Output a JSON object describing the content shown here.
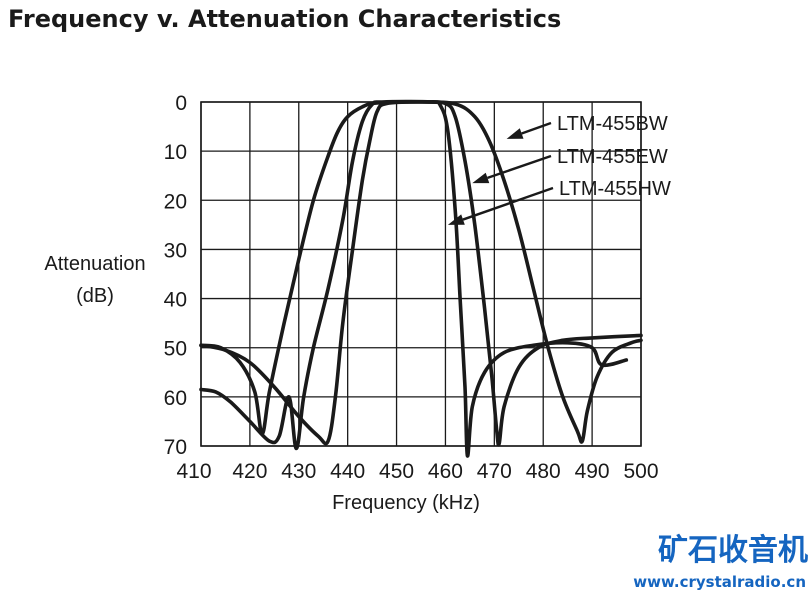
{
  "chart_data": {
    "type": "line",
    "title": "Frequency v. Attenuation Characteristics",
    "xlabel": "Frequency (kHz)",
    "ylabel_line1": "Attenuation",
    "ylabel_line2": "(dB)",
    "xlim": [
      410,
      500
    ],
    "ylim": [
      0,
      70
    ],
    "y_inverted": true,
    "grid": true,
    "x_ticks": [
      410,
      420,
      430,
      440,
      450,
      460,
      470,
      480,
      490,
      500
    ],
    "x_tick_labels": [
      "410",
      "420",
      "430",
      "440",
      "450",
      "460",
      "470",
      "480",
      "490",
      "500"
    ],
    "y_ticks": [
      0,
      10,
      20,
      30,
      40,
      50,
      60,
      70
    ],
    "y_tick_labels": [
      "0",
      "10",
      "20",
      "30",
      "40",
      "50",
      "60",
      "70"
    ],
    "series": [
      {
        "name": "LTM-455BW",
        "points": [
          [
            410,
            49.5
          ],
          [
            414,
            50
          ],
          [
            418,
            53
          ],
          [
            421,
            59
          ],
          [
            422.5,
            67.5
          ],
          [
            424,
            59
          ],
          [
            427,
            45
          ],
          [
            430,
            32
          ],
          [
            433,
            20
          ],
          [
            436,
            11
          ],
          [
            438,
            6
          ],
          [
            440,
            3
          ],
          [
            443,
            1
          ],
          [
            446,
            0.2
          ],
          [
            455,
            0
          ],
          [
            462,
            0.4
          ],
          [
            466,
            3
          ],
          [
            469,
            8
          ],
          [
            472,
            16
          ],
          [
            475,
            26
          ],
          [
            478,
            38
          ],
          [
            481,
            50
          ],
          [
            484,
            60
          ],
          [
            487,
            67
          ],
          [
            488,
            69
          ],
          [
            489,
            63
          ],
          [
            491,
            56
          ],
          [
            494,
            51
          ],
          [
            498,
            49
          ],
          [
            500,
            48.5
          ]
        ]
      },
      {
        "name": "LTM-455EW",
        "points": [
          [
            410,
            49.5
          ],
          [
            415,
            50.5
          ],
          [
            420,
            53
          ],
          [
            425,
            58
          ],
          [
            430,
            64
          ],
          [
            434,
            68
          ],
          [
            436,
            69
          ],
          [
            437.5,
            60
          ],
          [
            439,
            45
          ],
          [
            441,
            30
          ],
          [
            443,
            16
          ],
          [
            444.5,
            8
          ],
          [
            446,
            2
          ],
          [
            448,
            0.3
          ],
          [
            455,
            0
          ],
          [
            460,
            0.3
          ],
          [
            462,
            3
          ],
          [
            464,
            12
          ],
          [
            466,
            25
          ],
          [
            468,
            42
          ],
          [
            469.5,
            56
          ],
          [
            470.5,
            67
          ],
          [
            471,
            69.5
          ],
          [
            472,
            62
          ],
          [
            475,
            54
          ],
          [
            479,
            50
          ],
          [
            484,
            48.5
          ],
          [
            490,
            48
          ],
          [
            500,
            47.5
          ]
        ]
      },
      {
        "name": "LTM-455HW",
        "points": [
          [
            410,
            58.5
          ],
          [
            413,
            59
          ],
          [
            416,
            61
          ],
          [
            420,
            65
          ],
          [
            424,
            69
          ],
          [
            426,
            68
          ],
          [
            428,
            60
          ],
          [
            429.5,
            70.5
          ],
          [
            431,
            60
          ],
          [
            433,
            50
          ],
          [
            436,
            38
          ],
          [
            439,
            24
          ],
          [
            441,
            12
          ],
          [
            443,
            4
          ],
          [
            445,
            0.5
          ],
          [
            447,
            0
          ],
          [
            457,
            0
          ],
          [
            459,
            0.8
          ],
          [
            460.5,
            6
          ],
          [
            462,
            22
          ],
          [
            463,
            40
          ],
          [
            464,
            58
          ],
          [
            464.5,
            72
          ],
          [
            465.5,
            62
          ],
          [
            468,
            55
          ],
          [
            472,
            51
          ],
          [
            478,
            49.5
          ],
          [
            485,
            49
          ],
          [
            490,
            50
          ],
          [
            492,
            53.5
          ],
          [
            497,
            52.5
          ]
        ]
      }
    ],
    "annotations": [
      {
        "series": "LTM-455BW",
        "label": "LTM-455BW",
        "value_at": [
          472.5,
          7.5
        ]
      },
      {
        "series": "LTM-455EW",
        "label": "LTM-455EW",
        "value_at": [
          465.5,
          16.5
        ]
      },
      {
        "series": "LTM-455HW",
        "label": "LTM-455HW",
        "value_at": [
          460.5,
          25
        ]
      }
    ],
    "colors": {
      "line": "#1a1a1a",
      "grid": "#1a1a1a",
      "text": "#1a1a1a"
    }
  },
  "watermark": {
    "text_cn": "矿石收音机",
    "url": "www.crystalradio.cn",
    "color_cn": "#1565c0",
    "color_url": "#1565c0"
  }
}
